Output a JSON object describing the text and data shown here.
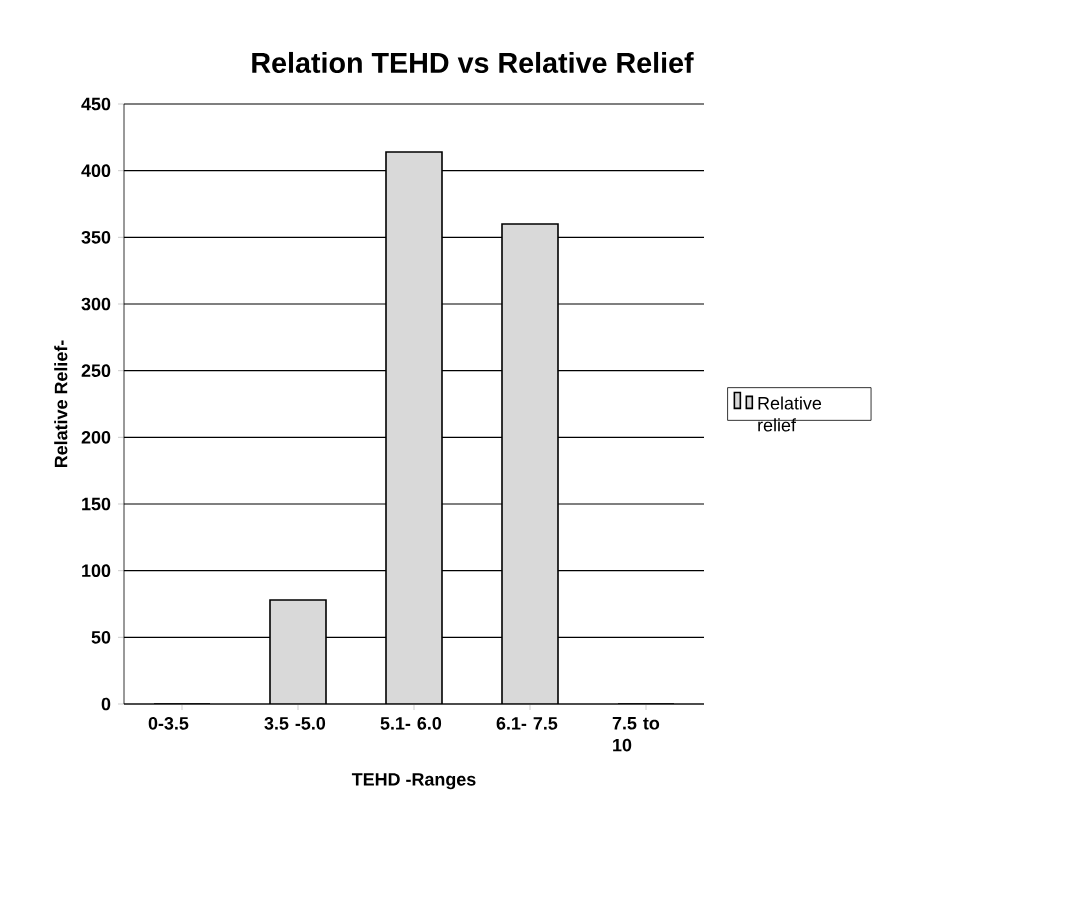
{
  "chart_data": {
    "type": "bar",
    "title": "Relation TEHD vs Relative Relief",
    "xlabel": "TEHD -Ranges",
    "ylabel": "Relative Relief-",
    "categories": [
      "0-3.5",
      "3.5 -5.0",
      "5.1- 6.0",
      "6.1- 7.5",
      "7.5 to 10"
    ],
    "series": [
      {
        "name": "Relative relief",
        "color": "#d9d9d9",
        "values": [
          0,
          78,
          414,
          360,
          0
        ]
      }
    ],
    "ylim": [
      0,
      450
    ],
    "yticks": [
      0,
      50,
      100,
      150,
      200,
      250,
      300,
      350,
      400,
      450
    ],
    "grid": "y",
    "legend": "right"
  }
}
